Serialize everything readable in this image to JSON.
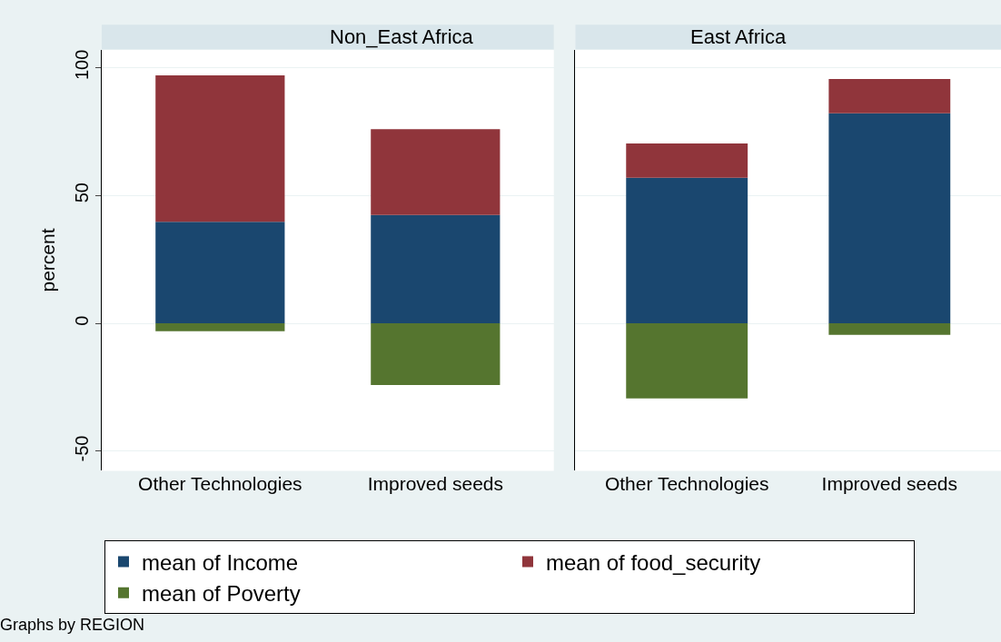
{
  "chart_data": [
    {
      "type": "bar",
      "title": "Non_East Africa",
      "ylabel": "percent",
      "categories": [
        "Other Technologies",
        "Improved seeds"
      ],
      "stacked": true,
      "ylim": [
        -57.6,
        107
      ],
      "yticks": [
        -50,
        0,
        50,
        100
      ],
      "grid": "y",
      "legend": "bottom",
      "annotations": [
        "Graphs by REGION"
      ],
      "series": [
        {
          "name": "mean of Income",
          "color": "#1a476f",
          "values": [
            39.7,
            42.4
          ]
        },
        {
          "name": "mean of food_security",
          "color": "#90353b",
          "values": [
            57.2,
            33.5
          ]
        },
        {
          "name": "mean of Poverty",
          "color": "#55752f",
          "values": [
            -3.1,
            -24.1
          ]
        }
      ]
    },
    {
      "type": "bar",
      "title": "East Africa",
      "categories": [
        "Other Technologies",
        "Improved seeds"
      ],
      "stacked": true,
      "ylim": [
        -57.6,
        107
      ],
      "yticks": [
        -50,
        0,
        50,
        100
      ],
      "grid": "y",
      "tick_labels": "x",
      "series": [
        {
          "color": "#1a476f",
          "values": [
            56.9,
            82.1
          ]
        },
        {
          "color": "#90353b",
          "values": [
            13.4,
            13.4
          ]
        },
        {
          "color": "#55752f",
          "values": [
            -29.3,
            -4.5
          ]
        }
      ]
    }
  ]
}
